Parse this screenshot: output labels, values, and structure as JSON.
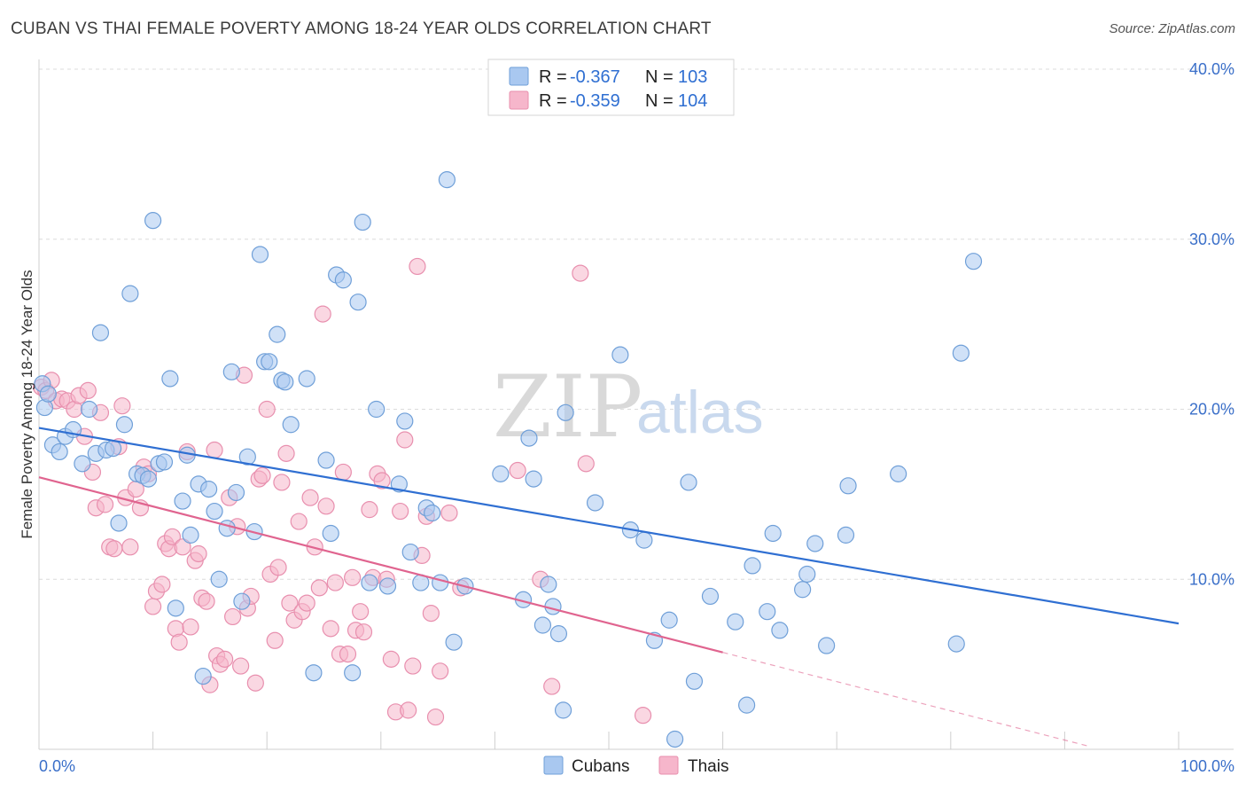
{
  "title": "CUBAN VS THAI FEMALE POVERTY AMONG 18-24 YEAR OLDS CORRELATION CHART",
  "source": "Source: ZipAtlas.com",
  "watermark": {
    "zip": "ZIP",
    "atlas": "atlas"
  },
  "legend_top": {
    "rows": [
      {
        "r_label": "R = ",
        "r_value": "-0.367",
        "n_label": "N = ",
        "n_value": "103",
        "color": "#a9c8f0"
      },
      {
        "r_label": "R = ",
        "r_value": "-0.359",
        "n_label": "N = ",
        "n_value": "104",
        "color": "#f6b6cb"
      }
    ]
  },
  "legend_bottom": [
    {
      "label": "Cubans",
      "color": "#a9c8f0"
    },
    {
      "label": "Thais",
      "color": "#f6b6cb"
    }
  ],
  "colors": {
    "blue_fill": "#a9c8f0",
    "blue_stroke": "#6f9fd8",
    "blue_line": "#2f6fd2",
    "pink_fill": "#f6b6cb",
    "pink_stroke": "#e88fae",
    "pink_line": "#e0648f",
    "grid": "#dcdcdc"
  },
  "chart_data": {
    "type": "scatter",
    "ylabel": "Female Poverty Among 18-24 Year Olds",
    "xlim": [
      0,
      100
    ],
    "ylim": [
      0,
      40
    ],
    "x_tick_labels": [
      "0.0%",
      "100.0%"
    ],
    "y_ticks": [
      {
        "value": 10,
        "label": "10.0%"
      },
      {
        "value": 20,
        "label": "20.0%"
      },
      {
        "value": 30,
        "label": "30.0%"
      },
      {
        "value": 40,
        "label": "40.0%"
      }
    ],
    "grid": true,
    "series": [
      {
        "name": "Cubans",
        "trend": {
          "x0": 0,
          "y0": 18.9,
          "x1": 100,
          "y1": 7.4
        },
        "points": [
          [
            0.3,
            21.5
          ],
          [
            0.5,
            20.1
          ],
          [
            1.2,
            17.9
          ],
          [
            1.8,
            17.5
          ],
          [
            2.3,
            18.4
          ],
          [
            3.0,
            18.8
          ],
          [
            3.8,
            16.8
          ],
          [
            4.4,
            20.0
          ],
          [
            5.0,
            17.4
          ],
          [
            5.4,
            24.5
          ],
          [
            5.9,
            17.6
          ],
          [
            6.5,
            17.7
          ],
          [
            7.0,
            13.3
          ],
          [
            7.5,
            19.1
          ],
          [
            8.0,
            26.8
          ],
          [
            8.6,
            16.2
          ],
          [
            9.1,
            16.1
          ],
          [
            9.6,
            15.9
          ],
          [
            10.0,
            31.1
          ],
          [
            10.5,
            16.8
          ],
          [
            11.0,
            16.9
          ],
          [
            11.5,
            21.8
          ],
          [
            12.0,
            8.3
          ],
          [
            12.6,
            14.6
          ],
          [
            13.0,
            17.3
          ],
          [
            13.3,
            12.6
          ],
          [
            14.0,
            15.6
          ],
          [
            14.4,
            4.3
          ],
          [
            14.9,
            15.3
          ],
          [
            15.4,
            14.0
          ],
          [
            15.8,
            10.0
          ],
          [
            16.5,
            13.0
          ],
          [
            16.9,
            22.2
          ],
          [
            17.3,
            15.1
          ],
          [
            17.8,
            8.7
          ],
          [
            18.3,
            17.2
          ],
          [
            18.9,
            12.8
          ],
          [
            19.4,
            29.1
          ],
          [
            19.8,
            22.8
          ],
          [
            20.2,
            22.8
          ],
          [
            20.9,
            24.4
          ],
          [
            21.3,
            21.7
          ],
          [
            21.6,
            21.6
          ],
          [
            22.1,
            19.1
          ],
          [
            23.5,
            21.8
          ],
          [
            24.1,
            4.5
          ],
          [
            25.2,
            17.0
          ],
          [
            25.6,
            12.7
          ],
          [
            26.1,
            27.9
          ],
          [
            26.7,
            27.6
          ],
          [
            27.5,
            4.5
          ],
          [
            28.0,
            26.3
          ],
          [
            28.4,
            31.0
          ],
          [
            29.0,
            9.8
          ],
          [
            29.6,
            20.0
          ],
          [
            30.6,
            9.6
          ],
          [
            31.6,
            15.6
          ],
          [
            32.1,
            19.3
          ],
          [
            32.6,
            11.6
          ],
          [
            33.5,
            9.8
          ],
          [
            34.0,
            14.2
          ],
          [
            34.5,
            13.9
          ],
          [
            35.2,
            9.8
          ],
          [
            35.8,
            33.5
          ],
          [
            36.4,
            6.3
          ],
          [
            37.4,
            9.6
          ],
          [
            40.5,
            16.2
          ],
          [
            42.5,
            8.8
          ],
          [
            43.0,
            18.3
          ],
          [
            43.4,
            15.9
          ],
          [
            44.2,
            7.3
          ],
          [
            44.7,
            9.7
          ],
          [
            45.1,
            8.4
          ],
          [
            45.6,
            6.8
          ],
          [
            46.0,
            2.3
          ],
          [
            46.2,
            19.8
          ],
          [
            48.8,
            14.5
          ],
          [
            51.0,
            23.2
          ],
          [
            51.9,
            12.9
          ],
          [
            53.1,
            12.3
          ],
          [
            54.0,
            6.4
          ],
          [
            55.3,
            7.6
          ],
          [
            55.8,
            0.6
          ],
          [
            57.0,
            15.7
          ],
          [
            57.5,
            4.0
          ],
          [
            58.9,
            9.0
          ],
          [
            61.1,
            7.5
          ],
          [
            62.1,
            2.6
          ],
          [
            62.6,
            10.8
          ],
          [
            63.9,
            8.1
          ],
          [
            64.4,
            12.7
          ],
          [
            65.0,
            7.0
          ],
          [
            67.0,
            9.4
          ],
          [
            67.4,
            10.3
          ],
          [
            68.1,
            12.1
          ],
          [
            69.1,
            6.1
          ],
          [
            70.8,
            12.6
          ],
          [
            71.0,
            15.5
          ],
          [
            75.4,
            16.2
          ],
          [
            80.5,
            6.2
          ],
          [
            80.9,
            23.3
          ],
          [
            82.0,
            28.7
          ],
          [
            0.8,
            20.9
          ]
        ]
      },
      {
        "name": "Thais",
        "trend": {
          "x0": 0,
          "y0": 16.0,
          "x1": 60,
          "y1": 5.7
        },
        "trend_extension": {
          "x0": 60,
          "y0": 5.7,
          "x1": 92,
          "y1": 0.2
        },
        "points": [
          [
            0.2,
            21.3
          ],
          [
            0.6,
            21.1
          ],
          [
            1.1,
            21.7
          ],
          [
            1.5,
            20.5
          ],
          [
            2.0,
            20.6
          ],
          [
            2.5,
            20.5
          ],
          [
            3.1,
            20.0
          ],
          [
            3.5,
            20.8
          ],
          [
            4.0,
            18.4
          ],
          [
            4.3,
            21.1
          ],
          [
            4.7,
            16.3
          ],
          [
            5.0,
            14.2
          ],
          [
            5.4,
            19.8
          ],
          [
            5.8,
            14.4
          ],
          [
            6.2,
            11.9
          ],
          [
            6.6,
            11.8
          ],
          [
            7.0,
            17.8
          ],
          [
            7.3,
            20.2
          ],
          [
            7.6,
            14.8
          ],
          [
            8.0,
            11.9
          ],
          [
            8.5,
            15.3
          ],
          [
            8.9,
            14.2
          ],
          [
            9.2,
            16.6
          ],
          [
            9.6,
            16.2
          ],
          [
            10.0,
            8.4
          ],
          [
            10.3,
            9.3
          ],
          [
            10.8,
            9.7
          ],
          [
            11.1,
            12.1
          ],
          [
            11.4,
            11.8
          ],
          [
            11.7,
            12.5
          ],
          [
            12.0,
            7.1
          ],
          [
            12.3,
            6.3
          ],
          [
            12.6,
            11.9
          ],
          [
            13.0,
            17.5
          ],
          [
            13.3,
            7.2
          ],
          [
            13.7,
            11.1
          ],
          [
            14.0,
            11.5
          ],
          [
            14.3,
            8.9
          ],
          [
            14.7,
            8.7
          ],
          [
            15.0,
            3.8
          ],
          [
            15.4,
            17.6
          ],
          [
            15.6,
            5.5
          ],
          [
            15.9,
            5.0
          ],
          [
            16.3,
            5.3
          ],
          [
            16.7,
            14.8
          ],
          [
            17.0,
            7.8
          ],
          [
            17.4,
            13.1
          ],
          [
            17.7,
            4.9
          ],
          [
            18.0,
            22.0
          ],
          [
            18.3,
            8.3
          ],
          [
            18.6,
            9.0
          ],
          [
            19.0,
            3.9
          ],
          [
            19.3,
            15.9
          ],
          [
            19.6,
            16.1
          ],
          [
            20.0,
            20.0
          ],
          [
            20.3,
            10.3
          ],
          [
            20.7,
            6.4
          ],
          [
            21.0,
            10.7
          ],
          [
            21.3,
            15.7
          ],
          [
            21.7,
            17.4
          ],
          [
            22.0,
            8.6
          ],
          [
            22.4,
            7.6
          ],
          [
            22.8,
            13.4
          ],
          [
            23.1,
            8.1
          ],
          [
            23.5,
            8.6
          ],
          [
            23.8,
            14.8
          ],
          [
            24.2,
            11.9
          ],
          [
            24.6,
            9.5
          ],
          [
            24.9,
            25.6
          ],
          [
            25.2,
            14.3
          ],
          [
            25.6,
            7.1
          ],
          [
            26.0,
            9.8
          ],
          [
            26.4,
            5.6
          ],
          [
            26.7,
            16.3
          ],
          [
            27.1,
            5.6
          ],
          [
            27.5,
            10.1
          ],
          [
            27.8,
            7.0
          ],
          [
            28.2,
            8.1
          ],
          [
            28.5,
            6.9
          ],
          [
            29.0,
            14.1
          ],
          [
            29.3,
            10.1
          ],
          [
            29.7,
            16.2
          ],
          [
            30.1,
            15.8
          ],
          [
            30.5,
            10.0
          ],
          [
            30.9,
            5.3
          ],
          [
            31.3,
            2.2
          ],
          [
            31.7,
            14.0
          ],
          [
            32.1,
            18.2
          ],
          [
            32.4,
            2.3
          ],
          [
            32.8,
            4.9
          ],
          [
            33.2,
            28.4
          ],
          [
            33.6,
            11.4
          ],
          [
            34.0,
            13.7
          ],
          [
            34.4,
            8.0
          ],
          [
            34.8,
            1.9
          ],
          [
            35.2,
            4.6
          ],
          [
            36.0,
            13.9
          ],
          [
            37.0,
            9.5
          ],
          [
            42.0,
            16.4
          ],
          [
            44.0,
            10.0
          ],
          [
            45.0,
            3.7
          ],
          [
            47.5,
            28.0
          ],
          [
            48.0,
            16.8
          ],
          [
            53.0,
            2.0
          ]
        ]
      }
    ]
  }
}
